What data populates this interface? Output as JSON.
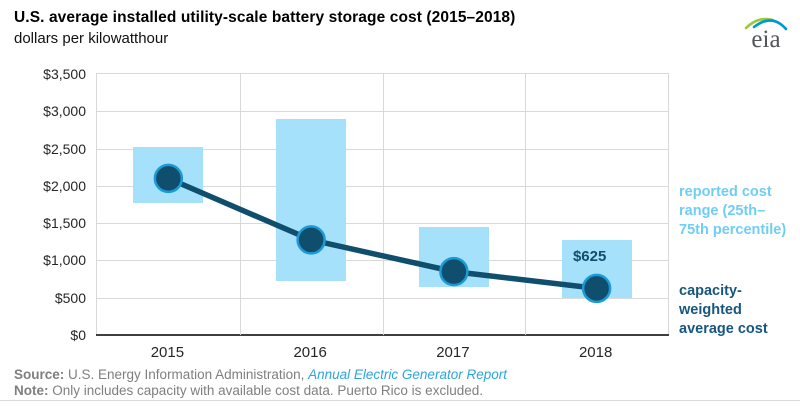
{
  "header": {
    "title": "U.S. average installed utility-scale battery storage cost (2015–2018)",
    "subtitle": "dollars per kilowatthour"
  },
  "logo": {
    "text": "eia"
  },
  "legend": {
    "range_label": "reported cost range (25th–75th percentile)",
    "avg_label": "capacity-weighted average cost"
  },
  "footer": {
    "source_label": "Source:",
    "source_text": " U.S. Energy Information Administration, ",
    "source_link": "Annual Electric Generator Report",
    "note_label": "Note:",
    "note_text": " Only includes capacity with available cost data. Puerto Rico is excluded."
  },
  "colors": {
    "bar_fill": "#a5e1fa",
    "line": "#0f4e6d",
    "marker_fill": "#0f4e6d",
    "marker_ring": "#1d9ad6",
    "legend_range_text": "#70cdf4",
    "legend_avg_text": "#17567d",
    "gridline": "#d9d9d9",
    "axis": "#3f3f3f",
    "link_blue": "#2ba6de",
    "footer_gray": "#7f7f7f"
  },
  "chart_data": {
    "type": "combo",
    "title": "U.S. average installed utility-scale battery storage cost (2015–2018)",
    "ylabel_units": "dollars per kilowatthour",
    "categories": [
      "2015",
      "2016",
      "2017",
      "2018"
    ],
    "series": [
      {
        "name": "reported cost range (25th–75th percentile)",
        "type": "bar-range",
        "low": [
          1775,
          730,
          650,
          500
        ],
        "high": [
          2525,
          2890,
          1450,
          1270
        ]
      },
      {
        "name": "capacity-weighted average cost",
        "type": "line",
        "values": [
          2100,
          1275,
          850,
          625
        ]
      }
    ],
    "annotations": [
      {
        "series": "capacity-weighted average cost",
        "category": "2018",
        "value": 625,
        "label": "$625"
      }
    ],
    "ylim": [
      0,
      3500
    ],
    "ytick_step": 500,
    "ytick_labels": [
      "$0",
      "$500",
      "$1,000",
      "$1,500",
      "$2,000",
      "$2,500",
      "$3,000",
      "$3,500"
    ],
    "grid": true,
    "legend_position": "right"
  }
}
